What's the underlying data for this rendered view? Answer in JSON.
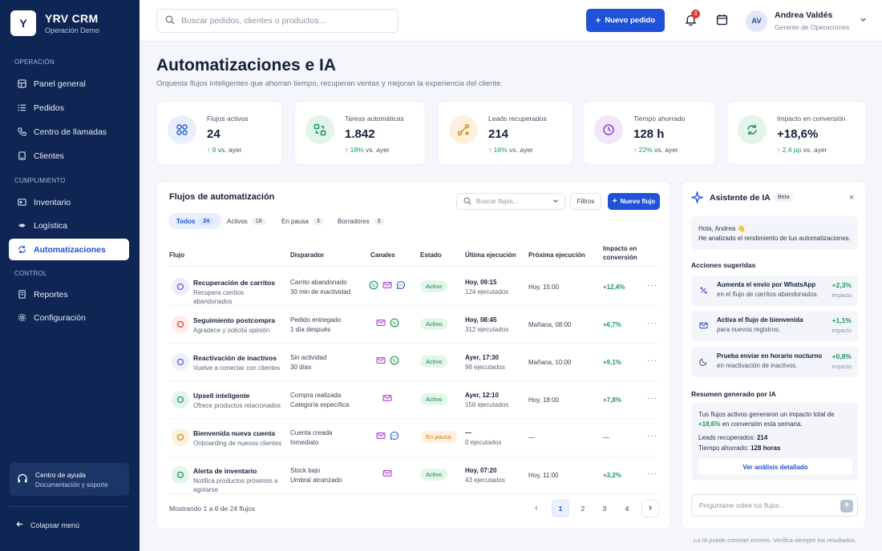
{
  "brand": {
    "logo": "Y",
    "title": "YRV CRM",
    "subtitle": "Operación Demo"
  },
  "sidebar": {
    "sections": [
      "OPERACIÓN",
      "CUMPLIMIENTO",
      "CONTROL"
    ],
    "items": [
      {
        "label": "Panel general",
        "icon": "grid-icon"
      },
      {
        "label": "Pedidos",
        "icon": "list-icon"
      },
      {
        "label": "Centro de llamadas",
        "icon": "phone-icon"
      },
      {
        "label": "Clientes",
        "icon": "user-icon"
      },
      {
        "label": "Inventario",
        "icon": "box-icon"
      },
      {
        "label": "Logística",
        "icon": "truck-icon"
      },
      {
        "label": "Automatizaciones",
        "icon": "refresh-icon",
        "active": true
      },
      {
        "label": "Reportes",
        "icon": "report-icon"
      },
      {
        "label": "Configuración",
        "icon": "gear-icon"
      }
    ],
    "help_title": "Centro de ayuda",
    "help_sub": "Documentación y soporte",
    "collapse": "Colapsar menú"
  },
  "topbar": {
    "search_placeholder": "Buscar pedidos, clientes o productos...",
    "new_order": "Nuevo pedido",
    "notif_count": "3",
    "user_initials": "AV",
    "user_name": "Andrea Valdés",
    "user_role": "Gerente de Operaciones"
  },
  "page": {
    "title": "Automatizaciones e IA",
    "subtitle": "Orquesta flujos inteligentes que ahorran tiempo, recuperan ventas y mejoran la experiencia del cliente."
  },
  "kpis": [
    {
      "label": "Flujos activos",
      "value": "24",
      "delta": "↑ 9",
      "suffix": "vs. ayer",
      "color": "#2f5fd0",
      "bg": "#e8eefb"
    },
    {
      "label": "Tareas automáticas",
      "value": "1.842",
      "delta": "↑ 18%",
      "suffix": "vs. ayer",
      "color": "#1a9a5a",
      "bg": "#e3f5ea"
    },
    {
      "label": "Leads recuperados",
      "value": "214",
      "delta": "↑ 16%",
      "suffix": "vs. ayer",
      "color": "#d08a1e",
      "bg": "#fdf1de"
    },
    {
      "label": "Tiempo ahorrado",
      "value": "128 h",
      "delta": "↑ 22%",
      "suffix": "vs. ayer",
      "color": "#8a44c8",
      "bg": "#f1e7fb"
    },
    {
      "label": "Impacto en conversión",
      "value": "+18,6%",
      "delta": "↑ 2,4 pp",
      "suffix": "vs. ayer",
      "color": "#1a9a5a",
      "bg": "#e3f5ea"
    }
  ],
  "flows": {
    "title": "Flujos de automatización",
    "search_placeholder": "Buscar flujos...",
    "filters": "Filtros",
    "new_flow": "Nuevo flujo",
    "tabs": [
      {
        "label": "Todos",
        "count": "24"
      },
      {
        "label": "Activos",
        "count": "18"
      },
      {
        "label": "En pausa",
        "count": "3"
      },
      {
        "label": "Borradores",
        "count": "3"
      }
    ],
    "columns": [
      "Flujo",
      "Disparador",
      "Canales",
      "Estado",
      "Última ejecución",
      "Próxima ejecución",
      "Impacto en conversión"
    ],
    "rows": [
      {
        "name": "Recuperación de carritos",
        "desc": "Recupera carritos abandonados",
        "trigger": "Carrito abandonado",
        "trigger2": "30 min de inactividad",
        "channels": [
          "whatsapp",
          "email",
          "chat"
        ],
        "status": "Activo",
        "last": "Hoy, 09:15",
        "last2": "124 ejecutados",
        "next": "Hoy, 15:00",
        "impact": "+12,4%",
        "icolor": "#6b5bd6",
        "ibg": "#efedfb"
      },
      {
        "name": "Seguimiento postcompra",
        "desc": "Agradece y solicita opinión",
        "trigger": "Pedido entregado",
        "trigger2": "1 día después",
        "channels": [
          "email",
          "whatsapp"
        ],
        "status": "Activo",
        "last": "Hoy, 08:45",
        "last2": "312 ejecutados",
        "next": "Mañana, 08:00",
        "impact": "+6,7%",
        "icolor": "#e0453a",
        "ibg": "#fdeceb"
      },
      {
        "name": "Reactivación de inactivos",
        "desc": "Vuelve a conectar con clientes",
        "trigger": "Sin actividad",
        "trigger2": "30 días",
        "channels": [
          "email",
          "whatsapp"
        ],
        "status": "Activo",
        "last": "Ayer, 17:30",
        "last2": "98 ejecutados",
        "next": "Mañana, 10:00",
        "impact": "+9,1%",
        "icolor": "#6b5bd6",
        "ibg": "#eef0fb"
      },
      {
        "name": "Upsell inteligente",
        "desc": "Ofrece productos relacionados",
        "trigger": "Compra realizada",
        "trigger2": "Categoría específica",
        "channels": [
          "email"
        ],
        "status": "Activo",
        "last": "Ayer, 12:10",
        "last2": "156 ejecutados",
        "next": "Hoy, 18:00",
        "impact": "+7,8%",
        "icolor": "#1a9a5a",
        "ibg": "#e3f5ea"
      },
      {
        "name": "Bienvenida nueva cuenta",
        "desc": "Onboarding de nuevos clientes",
        "trigger": "Cuenta creada",
        "trigger2": "Inmediato",
        "channels": [
          "email",
          "chat"
        ],
        "status": "En pausa",
        "last": "—",
        "last2": "0 ejecutados",
        "next": "—",
        "impact": "—",
        "icolor": "#d08a1e",
        "ibg": "#fdf1de"
      },
      {
        "name": "Alerta de inventario",
        "desc": "Notifica productos próximos a agotarse",
        "trigger": "Stock bajo",
        "trigger2": "Umbral alcanzado",
        "channels": [
          "email"
        ],
        "status": "Activo",
        "last": "Hoy, 07:20",
        "last2": "43 ejecutados",
        "next": "Hoy, 11:00",
        "impact": "+3,2%",
        "icolor": "#1a9a5a",
        "ibg": "#e3f5ea"
      }
    ],
    "showing": "Mostrando 1 a 6 de 24 flujos",
    "pages": [
      "1",
      "2",
      "3",
      "4"
    ],
    "current_page": "1"
  },
  "ai": {
    "title": "Asistente de IA",
    "beta": "Beta",
    "greeting": "Hola, Andrea 👋",
    "greeting2": "He analizado el rendimiento de tus automatizaciones.",
    "actions_title": "Acciones sugeridas",
    "actions": [
      {
        "title": "Aumenta el envío por WhatsApp",
        "sub": "en el flujo de carritos abandonados.",
        "value": "+2,3%",
        "label": "impacto",
        "icon": "sparkle-icon"
      },
      {
        "title": "Activa el flujo de bienvenida",
        "sub": "para nuevos registros.",
        "value": "+1,1%",
        "label": "impacto",
        "icon": "mail-icon"
      },
      {
        "title": "Prueba enviar en horario nocturno",
        "sub": "en reactivación de inactivos.",
        "value": "+0,8%",
        "label": "impacto",
        "icon": "moon-icon"
      }
    ],
    "summary_title": "Resumen generado por IA",
    "summary_text": "Tus flujos activos generaron un impacto total de",
    "summary_value": "+18,6%",
    "summary_text2": "en conversión esta semana.",
    "leads_label": "Leads recuperados:",
    "leads_value": "214",
    "time_label": "Tiempo ahorrado:",
    "time_value": "128 horas",
    "detail_button": "Ver análisis detallado",
    "input_placeholder": "Pregúntame sobre tus flujos...",
    "disclaimer": "La IA puede cometer errores. Verifica siempre los resultados."
  }
}
